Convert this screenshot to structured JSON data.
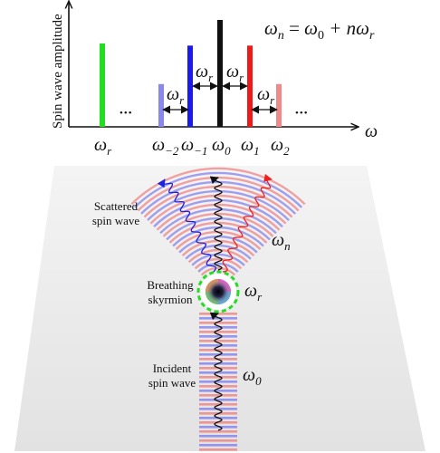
{
  "spectrum": {
    "y_axis_label": "Spin wave amplitude",
    "x_axis_symbol": "ω",
    "formula": {
      "lhs": "ω",
      "lhs_sub": "n",
      "eq": " = ",
      "t1": "ω",
      "t1_sub": "0",
      "plus": " + n",
      "t2": "ω",
      "t2_sub": "r"
    },
    "ellipsis_left": "•••",
    "ellipsis_right": "•••",
    "gap_labels": [
      {
        "sym": "ω",
        "sub": "r"
      },
      {
        "sym": "ω",
        "sub": "r"
      },
      {
        "sym": "ω",
        "sub": "r"
      },
      {
        "sym": "ω",
        "sub": "r"
      }
    ],
    "tick_labels": [
      {
        "sym": "ω",
        "sub": "r"
      },
      {
        "sym": "ω",
        "sub": "−2"
      },
      {
        "sym": "ω",
        "sub": "−1"
      },
      {
        "sym": "ω",
        "sub": "0"
      },
      {
        "sym": "ω",
        "sub": "1"
      },
      {
        "sym": "ω",
        "sub": "2"
      }
    ],
    "bars": [
      {
        "name": "bar-omega-r",
        "color": "#22dd22",
        "amplitude": 0.78
      },
      {
        "name": "bar-omega-minus2",
        "color": "#8888ee",
        "amplitude": 0.4
      },
      {
        "name": "bar-omega-minus1",
        "color": "#1a1aee",
        "amplitude": 0.76
      },
      {
        "name": "bar-omega-0",
        "color": "#111111",
        "amplitude": 1.0
      },
      {
        "name": "bar-omega-1",
        "color": "#ee1a1a",
        "amplitude": 0.76
      },
      {
        "name": "bar-omega-2",
        "color": "#f08a8a",
        "amplitude": 0.4
      }
    ]
  },
  "scene": {
    "scattered_label_line1": "Scattered",
    "scattered_label_line2": "spin wave",
    "skyrmion_label_line1": "Breathing",
    "skyrmion_label_line2": "skyrmion",
    "incident_label_line1": "Incident",
    "incident_label_line2": "spin wave",
    "omega_n": {
      "sym": "ω",
      "sub": "n"
    },
    "omega_r": {
      "sym": "ω",
      "sub": "r"
    },
    "omega_0": {
      "sym": "ω",
      "sub": "0"
    }
  },
  "colors": {
    "red_wave": "#ee2020",
    "blue_wave": "#2020dd",
    "ring_green": "#22dd22"
  }
}
